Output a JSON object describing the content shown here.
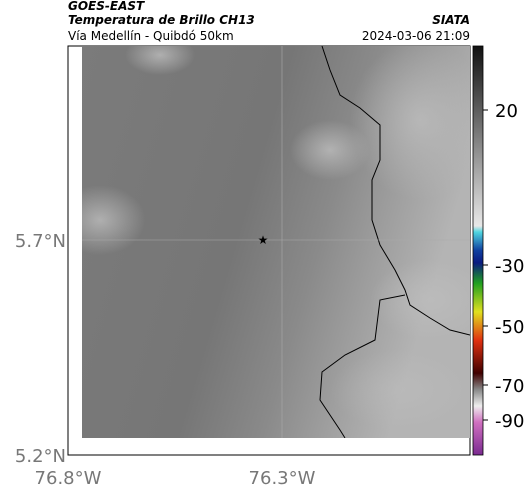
{
  "header": {
    "satellite": "GOES-EAST",
    "product": "Temperatura de Brillo CH13",
    "region": "Vía Medellín - Quibdó 50km",
    "agency": "SIATA",
    "datetime": "2024-03-06 21:09"
  },
  "map": {
    "lat_ticks": [
      "5.7°N",
      "5.2°N"
    ],
    "lon_ticks": [
      "76.8°W",
      "76.3°W"
    ]
  },
  "colorbar": {
    "ticks": [
      20,
      -30,
      -50,
      -70,
      -90
    ]
  }
}
